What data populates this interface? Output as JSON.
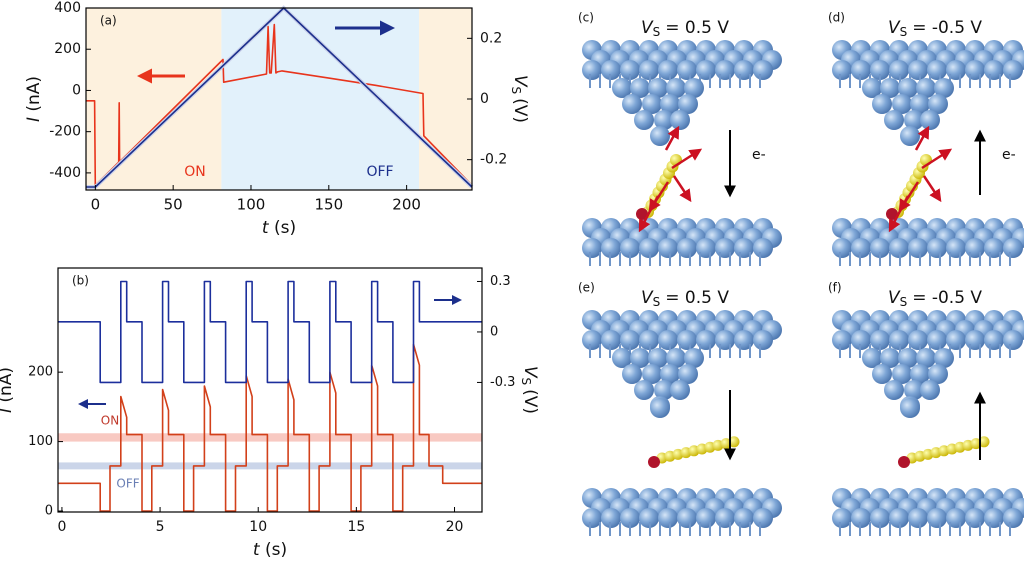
{
  "chart_data": [
    {
      "type": "line",
      "label": "(a)",
      "xlabel": "t",
      "xlabel_unit": "(s)",
      "ylabel": "I",
      "ylabel_unit": "(nA)",
      "y2label": "V",
      "y2label_sub": "S",
      "y2label_unit": "(V)",
      "xlim": [
        -6,
        242
      ],
      "xticks": [
        0,
        50,
        100,
        150,
        200
      ],
      "ylim": [
        -483,
        400
      ],
      "yticks": [
        -400,
        -200,
        0,
        200,
        400
      ],
      "y2lim": [
        -0.3,
        0.3
      ],
      "y2ticks": [
        0.2,
        0,
        -0.2
      ],
      "regions": [
        {
          "x": [
            -6,
            81
          ],
          "color": "#fdf1de"
        },
        {
          "x": [
            81,
            208
          ],
          "color": "#e2f1fb"
        },
        {
          "x": [
            208,
            242
          ],
          "color": "#fdf1de"
        }
      ],
      "annotations": [
        "ON",
        "OFF"
      ],
      "series": [
        {
          "color": "#e8341c",
          "x": [
            -6,
            -0.5,
            0,
            15,
            15.3,
            15.6,
            82,
            82.5,
            110,
            111,
            112,
            113,
            115,
            116,
            117,
            120,
            150,
            180,
            210.5,
            211,
            242
          ],
          "values": [
            -50,
            -50,
            -460,
            -348,
            -60,
            -346,
            150,
            40,
            80,
            310,
            85,
            85,
            320,
            85,
            90,
            95,
            60,
            25,
            -15,
            -220,
            -460
          ]
        },
        {
          "color": "#1c2f8c",
          "axis": "y2",
          "x": [
            -6,
            0,
            121,
            242
          ],
          "values": [
            -0.29,
            -0.29,
            0.3,
            -0.29
          ]
        }
      ]
    },
    {
      "type": "line",
      "label": "(b)",
      "xlabel": "t",
      "xlabel_unit": "(s)",
      "ylabel": "I",
      "ylabel_unit": "(nA)",
      "y2label": "V",
      "y2label_sub": "S",
      "y2label_unit": "(V)",
      "xlim": [
        -0.2,
        21.4
      ],
      "xticks": [
        0,
        5,
        10,
        15,
        20
      ],
      "ylim": [
        -1.4,
        350
      ],
      "yticks": [
        0,
        100,
        200
      ],
      "y2lim": [
        -1.07,
        0.38
      ],
      "y2ticks": [
        0.3,
        0,
        -0.3
      ],
      "bands": [
        {
          "y": [
            100,
            112
          ],
          "color": "#f8c9c2"
        },
        {
          "y": [
            60,
            70
          ],
          "color": "#cbd5e9"
        }
      ],
      "annotations": [
        "ON",
        "OFF"
      ],
      "series": [
        {
          "color": "#d2401a",
          "x": [
            -0.2,
            1.95,
            1.95,
            2.45,
            2.45,
            3.0,
            3.0,
            3.3,
            3.3,
            4.08,
            4.08,
            4.58,
            4.58,
            5.13,
            5.13,
            5.43,
            5.43,
            6.21,
            6.21,
            6.71,
            6.71,
            7.26,
            7.26,
            7.56,
            7.56,
            8.34,
            8.34,
            8.84,
            8.84,
            9.39,
            9.39,
            9.69,
            9.69,
            10.47,
            10.47,
            10.97,
            10.97,
            11.52,
            11.52,
            11.82,
            11.82,
            12.6,
            12.6,
            13.1,
            13.1,
            13.65,
            13.65,
            13.95,
            13.95,
            14.73,
            14.73,
            15.23,
            15.23,
            15.78,
            15.78,
            16.08,
            16.08,
            16.86,
            16.86,
            17.36,
            17.36,
            17.91,
            17.91,
            18.21,
            18.21,
            18.7,
            18.7,
            19.4,
            19.4,
            21.4
          ],
          "values": [
            40,
            40,
            0,
            0,
            65,
            65,
            165,
            135,
            110,
            110,
            0,
            0,
            65,
            65,
            175,
            145,
            110,
            110,
            0,
            0,
            65,
            65,
            180,
            150,
            110,
            110,
            0,
            0,
            65,
            65,
            195,
            165,
            110,
            110,
            0,
            0,
            65,
            65,
            190,
            160,
            110,
            110,
            0,
            0,
            65,
            65,
            200,
            170,
            110,
            110,
            0,
            0,
            65,
            65,
            210,
            180,
            110,
            110,
            0,
            0,
            65,
            65,
            240,
            210,
            110,
            110,
            65,
            65,
            40,
            40
          ]
        },
        {
          "color": "#1c2f9c",
          "axis": "y2",
          "x": [
            -0.2,
            1.95,
            1.95,
            3.0,
            3.0,
            3.3,
            3.3,
            4.08,
            4.08,
            5.13,
            5.13,
            5.43,
            5.43,
            6.21,
            6.21,
            7.26,
            7.26,
            7.56,
            7.56,
            8.34,
            8.34,
            9.39,
            9.39,
            9.69,
            9.69,
            10.47,
            10.47,
            11.52,
            11.52,
            11.82,
            11.82,
            12.6,
            12.6,
            13.65,
            13.65,
            13.95,
            13.95,
            14.73,
            14.73,
            15.78,
            15.78,
            16.08,
            16.08,
            16.86,
            16.86,
            17.91,
            17.91,
            18.21,
            18.21,
            21.4
          ],
          "values": [
            0.06,
            0.06,
            -0.3,
            -0.3,
            0.3,
            0.3,
            0.06,
            0.06,
            -0.3,
            -0.3,
            0.3,
            0.3,
            0.06,
            0.06,
            -0.3,
            -0.3,
            0.3,
            0.3,
            0.06,
            0.06,
            -0.3,
            -0.3,
            0.3,
            0.3,
            0.06,
            0.06,
            -0.3,
            -0.3,
            0.3,
            0.3,
            0.06,
            0.06,
            -0.3,
            -0.3,
            0.3,
            0.3,
            0.06,
            0.06,
            -0.3,
            -0.3,
            0.3,
            0.3,
            0.06,
            0.06,
            -0.3,
            -0.3,
            0.3,
            0.3,
            0.06,
            0.06
          ]
        }
      ]
    }
  ],
  "panels": [
    {
      "label": "(c)",
      "v_var": "V",
      "v_sub": "S",
      "v_value": "= 0.5 V",
      "electron": "e-"
    },
    {
      "label": "(d)",
      "v_var": "V",
      "v_sub": "S",
      "v_value": "= -0.5 V",
      "electron": "e-"
    },
    {
      "label": "(e)",
      "v_var": "V",
      "v_sub": "S",
      "v_value": "= 0.5 V"
    },
    {
      "label": "(f)",
      "v_var": "V",
      "v_sub": "S",
      "v_value": "= -0.5 V"
    }
  ]
}
